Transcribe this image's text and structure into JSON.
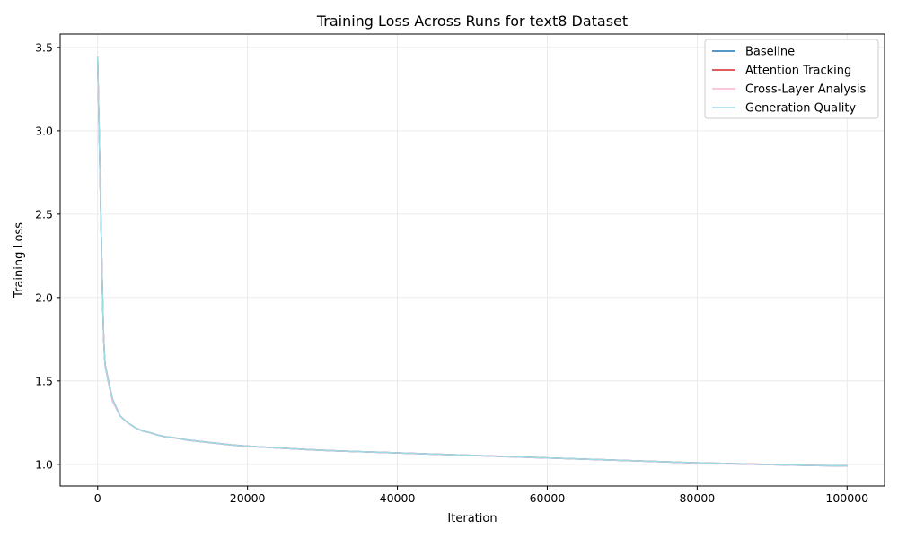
{
  "chart_data": {
    "type": "line",
    "title": "Training Loss Across Runs for text8 Dataset",
    "xlabel": "Iteration",
    "ylabel": "Training Loss",
    "xlim": [
      -5000,
      105000
    ],
    "ylim": [
      0.87,
      3.58
    ],
    "xticks": [
      0,
      20000,
      40000,
      60000,
      80000,
      100000
    ],
    "xtick_labels": [
      "0",
      "20000",
      "40000",
      "60000",
      "80000",
      "100000"
    ],
    "yticks": [
      1.0,
      1.5,
      2.0,
      2.5,
      3.0,
      3.5
    ],
    "ytick_labels": [
      "1.0",
      "1.5",
      "2.0",
      "2.5",
      "3.0",
      "3.5"
    ],
    "grid": true,
    "legend_position": "top-right",
    "series": [
      {
        "name": "Baseline",
        "color": "#1f77b4",
        "x": [
          0,
          100,
          200,
          300,
          400,
          500,
          600,
          700,
          800,
          900,
          1000,
          1500,
          2000,
          3000,
          4000,
          5000,
          6000,
          7000,
          8000,
          9000,
          10000,
          12000,
          14000,
          16000,
          18000,
          20000,
          22000,
          24000,
          26000,
          28000,
          30000,
          32000,
          34000,
          36000,
          38000,
          40000,
          42000,
          44000,
          46000,
          48000,
          50000,
          52000,
          54000,
          56000,
          58000,
          60000,
          62000,
          64000,
          66000,
          68000,
          70000,
          72000,
          74000,
          76000,
          78000,
          80000,
          82000,
          84000,
          86000,
          88000,
          90000,
          92000,
          94000,
          96000,
          98000,
          100000
        ],
        "y": [
          3.43,
          3.2,
          2.99,
          2.77,
          2.55,
          2.33,
          2.12,
          1.93,
          1.76,
          1.66,
          1.59,
          1.48,
          1.38,
          1.29,
          1.25,
          1.22,
          1.2,
          1.19,
          1.175,
          1.165,
          1.16,
          1.145,
          1.135,
          1.125,
          1.115,
          1.108,
          1.103,
          1.098,
          1.093,
          1.088,
          1.084,
          1.08,
          1.077,
          1.074,
          1.071,
          1.068,
          1.065,
          1.062,
          1.059,
          1.056,
          1.053,
          1.05,
          1.047,
          1.044,
          1.041,
          1.038,
          1.035,
          1.032,
          1.029,
          1.026,
          1.023,
          1.02,
          1.017,
          1.014,
          1.011,
          1.008,
          1.006,
          1.004,
          1.002,
          1.0,
          0.998,
          0.996,
          0.994,
          0.992,
          0.991,
          0.99
        ]
      },
      {
        "name": "Attention Tracking",
        "color": "#d62728",
        "x": [
          0,
          100,
          200,
          300,
          400,
          500,
          600,
          700,
          800,
          900,
          1000,
          1500,
          2000,
          3000,
          4000,
          5000,
          6000,
          7000,
          8000,
          9000,
          10000,
          12000,
          14000,
          16000,
          18000,
          20000,
          22000,
          24000,
          26000,
          28000,
          30000,
          32000,
          34000,
          36000,
          38000,
          40000,
          42000,
          44000,
          46000,
          48000,
          50000,
          52000,
          54000,
          56000,
          58000,
          60000,
          62000,
          64000,
          66000,
          68000,
          70000,
          72000,
          74000,
          76000,
          78000,
          80000,
          82000,
          84000,
          86000,
          88000,
          90000,
          92000,
          94000,
          96000,
          98000,
          100000
        ],
        "y": [
          3.44,
          3.21,
          3.0,
          2.78,
          2.56,
          2.34,
          2.13,
          1.94,
          1.77,
          1.67,
          1.6,
          1.49,
          1.39,
          1.29,
          1.25,
          1.22,
          1.2,
          1.19,
          1.176,
          1.166,
          1.161,
          1.146,
          1.136,
          1.126,
          1.116,
          1.109,
          1.104,
          1.099,
          1.094,
          1.089,
          1.085,
          1.081,
          1.078,
          1.075,
          1.072,
          1.069,
          1.066,
          1.063,
          1.06,
          1.057,
          1.054,
          1.051,
          1.048,
          1.045,
          1.042,
          1.039,
          1.036,
          1.033,
          1.03,
          1.027,
          1.024,
          1.021,
          1.018,
          1.015,
          1.012,
          1.009,
          1.007,
          1.005,
          1.003,
          1.001,
          0.999,
          0.997,
          0.995,
          0.993,
          0.992,
          0.991
        ]
      },
      {
        "name": "Cross-Layer Analysis",
        "color": "#f7b6d2",
        "x": [
          0,
          100,
          200,
          300,
          400,
          500,
          600,
          700,
          800,
          900,
          1000,
          1500,
          2000,
          3000,
          4000,
          5000,
          6000,
          7000,
          8000,
          9000,
          10000,
          12000,
          14000,
          16000,
          18000,
          20000,
          22000,
          24000,
          26000,
          28000,
          30000,
          32000,
          34000,
          36000,
          38000,
          40000,
          42000,
          44000,
          46000,
          48000,
          50000,
          52000,
          54000,
          56000,
          58000,
          60000,
          62000,
          64000,
          66000,
          68000,
          70000,
          72000,
          74000,
          76000,
          78000,
          80000,
          82000,
          84000,
          86000,
          88000,
          90000,
          92000,
          94000,
          96000,
          98000,
          100000
        ],
        "y": [
          3.43,
          3.2,
          2.99,
          2.77,
          2.55,
          2.33,
          2.12,
          1.93,
          1.76,
          1.66,
          1.59,
          1.48,
          1.38,
          1.29,
          1.25,
          1.22,
          1.2,
          1.19,
          1.175,
          1.165,
          1.16,
          1.145,
          1.135,
          1.125,
          1.115,
          1.108,
          1.103,
          1.098,
          1.093,
          1.088,
          1.084,
          1.08,
          1.077,
          1.074,
          1.071,
          1.068,
          1.065,
          1.062,
          1.059,
          1.056,
          1.053,
          1.05,
          1.047,
          1.044,
          1.041,
          1.038,
          1.035,
          1.032,
          1.029,
          1.026,
          1.023,
          1.02,
          1.017,
          1.014,
          1.011,
          1.008,
          1.006,
          1.004,
          1.002,
          1.0,
          0.998,
          0.996,
          0.994,
          0.992,
          0.991,
          0.99
        ]
      },
      {
        "name": "Generation Quality",
        "color": "#9edae5",
        "x": [
          0,
          100,
          200,
          300,
          400,
          500,
          600,
          700,
          800,
          900,
          1000,
          1500,
          2000,
          3000,
          4000,
          5000,
          6000,
          7000,
          8000,
          9000,
          10000,
          12000,
          14000,
          16000,
          18000,
          20000,
          22000,
          24000,
          26000,
          28000,
          30000,
          32000,
          34000,
          36000,
          38000,
          40000,
          42000,
          44000,
          46000,
          48000,
          50000,
          52000,
          54000,
          56000,
          58000,
          60000,
          62000,
          64000,
          66000,
          68000,
          70000,
          72000,
          74000,
          76000,
          78000,
          80000,
          82000,
          84000,
          86000,
          88000,
          90000,
          92000,
          94000,
          96000,
          98000,
          100000
        ],
        "y": [
          3.44,
          3.21,
          3.0,
          2.78,
          2.56,
          2.34,
          2.13,
          1.94,
          1.77,
          1.67,
          1.6,
          1.49,
          1.39,
          1.29,
          1.25,
          1.22,
          1.2,
          1.19,
          1.176,
          1.166,
          1.161,
          1.146,
          1.136,
          1.126,
          1.116,
          1.109,
          1.104,
          1.099,
          1.094,
          1.089,
          1.085,
          1.081,
          1.078,
          1.075,
          1.072,
          1.069,
          1.066,
          1.063,
          1.06,
          1.057,
          1.054,
          1.051,
          1.048,
          1.045,
          1.042,
          1.039,
          1.036,
          1.033,
          1.03,
          1.027,
          1.024,
          1.021,
          1.018,
          1.015,
          1.012,
          1.009,
          1.007,
          1.005,
          1.003,
          1.001,
          0.999,
          0.997,
          0.995,
          0.993,
          0.992,
          0.991
        ]
      }
    ]
  }
}
